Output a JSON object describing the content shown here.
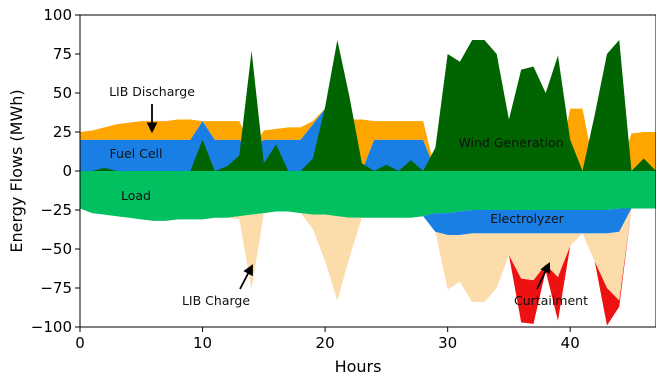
{
  "chart_data": {
    "type": "area",
    "xlabel": "Hours",
    "ylabel": "Energy Flows (MWh)",
    "xlim": [
      0,
      47
    ],
    "ylim": [
      -100,
      100
    ],
    "xticks": [
      0,
      10,
      20,
      30,
      40
    ],
    "yticks": [
      -100,
      -75,
      -50,
      -25,
      0,
      25,
      50,
      75,
      100
    ],
    "grid": false,
    "series": [
      {
        "name": "Load",
        "color": "#00c060",
        "x": [
          0,
          1,
          2,
          3,
          4,
          5,
          6,
          7,
          8,
          9,
          10,
          11,
          12,
          13,
          14,
          15,
          16,
          17,
          18,
          19,
          20,
          21,
          22,
          23,
          24,
          25,
          26,
          27,
          28,
          29,
          30,
          31,
          32,
          33,
          34,
          35,
          36,
          37,
          38,
          39,
          40,
          41,
          42,
          43,
          44,
          45,
          46,
          47
        ],
        "values": [
          -24,
          -27,
          -28,
          -29,
          -30,
          -31,
          -32,
          -32,
          -31,
          -31,
          -31,
          -30,
          -30,
          -29,
          -28,
          -27,
          -26,
          -26,
          -27,
          -28,
          -28,
          -29,
          -30,
          -30,
          -30,
          -30,
          -30,
          -30,
          -29,
          -27,
          -27,
          -26,
          -25,
          -25,
          -25,
          -25,
          -25,
          -25,
          -25,
          -25,
          -25,
          -25,
          -25,
          -25,
          -24,
          -24,
          -24,
          -24
        ]
      },
      {
        "name": "Fuel Cell",
        "color": "#1a7fe5",
        "x": [
          0,
          1,
          2,
          3,
          4,
          5,
          6,
          7,
          8,
          9,
          10,
          11,
          12,
          13,
          14,
          15,
          16,
          17,
          18,
          19,
          20,
          21,
          22,
          23,
          24,
          25,
          26,
          27,
          28,
          29,
          30,
          31,
          32,
          33,
          34,
          35,
          36,
          37,
          38,
          39,
          40,
          41,
          42,
          43,
          44,
          45,
          46,
          47
        ],
        "values": [
          20,
          20,
          20,
          20,
          20,
          20,
          20,
          20,
          20,
          20,
          32,
          20,
          20,
          20,
          14,
          20,
          20,
          20,
          20,
          30,
          40,
          35,
          20,
          0,
          20,
          20,
          20,
          20,
          20,
          0,
          0,
          0,
          0,
          0,
          0,
          0,
          0,
          0,
          0,
          0,
          0,
          0,
          0,
          0,
          0,
          0,
          0,
          0
        ]
      },
      {
        "name": "LIB Discharge",
        "color": "#ffa500",
        "x": [
          0,
          1,
          2,
          3,
          4,
          5,
          6,
          7,
          8,
          9,
          10,
          11,
          12,
          13,
          14,
          15,
          16,
          17,
          18,
          19,
          20,
          21,
          22,
          23,
          24,
          25,
          26,
          27,
          28,
          29,
          30,
          31,
          32,
          33,
          34,
          35,
          36,
          37,
          38,
          39,
          40,
          41,
          42,
          43,
          44,
          45,
          46,
          47
        ],
        "values": [
          5,
          6,
          8,
          10,
          11,
          12,
          12,
          12,
          13,
          13,
          0,
          12,
          12,
          12,
          0,
          6,
          7,
          8,
          8,
          2,
          0,
          0,
          13,
          33,
          12,
          12,
          12,
          12,
          12,
          0,
          0,
          0,
          0,
          0,
          0,
          0,
          0,
          0,
          0,
          0,
          40,
          40,
          0,
          0,
          0,
          24,
          25,
          25
        ]
      },
      {
        "name": "Wind Generation",
        "color": "#006400",
        "x": [
          0,
          1,
          2,
          3,
          4,
          5,
          6,
          7,
          8,
          9,
          10,
          11,
          12,
          13,
          14,
          15,
          16,
          17,
          18,
          19,
          20,
          21,
          22,
          23,
          24,
          25,
          26,
          27,
          28,
          29,
          30,
          31,
          32,
          33,
          34,
          35,
          36,
          37,
          38,
          39,
          40,
          41,
          42,
          43,
          44,
          45,
          46,
          47
        ],
        "values": [
          0,
          0,
          2,
          0,
          0,
          0,
          0,
          0,
          0,
          0,
          20,
          0,
          3,
          10,
          77,
          5,
          17,
          0,
          0,
          8,
          41,
          84,
          47,
          5,
          0,
          4,
          0,
          7,
          0,
          15,
          75,
          70,
          84,
          84,
          75,
          33,
          65,
          67,
          50,
          74,
          20,
          0,
          36,
          75,
          84,
          0,
          8,
          0
        ]
      },
      {
        "name": "Electrolyzer",
        "color": "#1a7fe5",
        "x": [
          0,
          1,
          2,
          3,
          4,
          5,
          6,
          7,
          8,
          9,
          10,
          11,
          12,
          13,
          14,
          15,
          16,
          17,
          18,
          19,
          20,
          21,
          22,
          23,
          24,
          25,
          26,
          27,
          28,
          29,
          30,
          31,
          32,
          33,
          34,
          35,
          36,
          37,
          38,
          39,
          40,
          41,
          42,
          43,
          44,
          45,
          46,
          47
        ],
        "values": [
          0,
          0,
          0,
          0,
          0,
          0,
          0,
          0,
          0,
          0,
          0,
          0,
          0,
          0,
          0,
          0,
          0,
          0,
          0,
          0,
          0,
          0,
          0,
          0,
          0,
          0,
          0,
          0,
          0,
          -12,
          -14,
          -15,
          -15,
          -15,
          -15,
          -15,
          -15,
          -15,
          -15,
          -15,
          -15,
          -15,
          -15,
          -15,
          -15,
          0,
          0,
          0
        ]
      },
      {
        "name": "LIB Charge",
        "color": "#fcdcab",
        "x": [
          0,
          1,
          2,
          3,
          4,
          5,
          6,
          7,
          8,
          9,
          10,
          11,
          12,
          13,
          14,
          15,
          16,
          17,
          18,
          19,
          20,
          21,
          22,
          23,
          24,
          25,
          26,
          27,
          28,
          29,
          30,
          31,
          32,
          33,
          34,
          35,
          36,
          37,
          38,
          39,
          40,
          41,
          42,
          43,
          44,
          45,
          46,
          47
        ],
        "values": [
          0,
          0,
          0,
          0,
          0,
          0,
          0,
          0,
          0,
          0,
          0,
          0,
          0,
          -2,
          -48,
          0,
          0,
          0,
          0,
          -9,
          -30,
          -54,
          -25,
          0,
          0,
          0,
          0,
          0,
          0,
          0,
          -35,
          -30,
          -44,
          -44,
          -35,
          -14,
          -29,
          -30,
          -20,
          -28,
          -8,
          0,
          -18,
          -35,
          -44,
          0,
          0,
          0
        ]
      },
      {
        "name": "Curtailment",
        "color": "#ee1111",
        "x": [
          0,
          1,
          2,
          3,
          4,
          5,
          6,
          7,
          8,
          9,
          10,
          11,
          12,
          13,
          14,
          15,
          16,
          17,
          18,
          19,
          20,
          21,
          22,
          23,
          24,
          25,
          26,
          27,
          28,
          29,
          30,
          31,
          32,
          33,
          34,
          35,
          36,
          37,
          38,
          39,
          40,
          41,
          42,
          43,
          44,
          45,
          46,
          47
        ],
        "values": [
          0,
          0,
          0,
          0,
          0,
          0,
          0,
          0,
          0,
          0,
          0,
          0,
          0,
          0,
          0,
          0,
          0,
          0,
          0,
          0,
          0,
          0,
          0,
          0,
          0,
          0,
          0,
          0,
          0,
          0,
          0,
          0,
          0,
          0,
          0,
          0,
          -28,
          -28,
          -4,
          -28,
          0,
          0,
          0,
          -24,
          -4,
          0,
          0,
          0
        ]
      }
    ],
    "annotations": [
      {
        "text": "LIB Discharge",
        "series": "LIB Discharge",
        "arrow": true
      },
      {
        "text": "Fuel Cell",
        "series": "Fuel Cell",
        "arrow": false
      },
      {
        "text": "Load",
        "series": "Load",
        "arrow": false
      },
      {
        "text": "Wind Generation",
        "series": "Wind Generation",
        "arrow": false
      },
      {
        "text": "Electrolyzer",
        "series": "Electrolyzer",
        "arrow": false
      },
      {
        "text": "LIB Charge",
        "series": "LIB Charge",
        "arrow": true
      },
      {
        "text": "Curtailment",
        "series": "Curtailment",
        "arrow": true
      }
    ]
  }
}
